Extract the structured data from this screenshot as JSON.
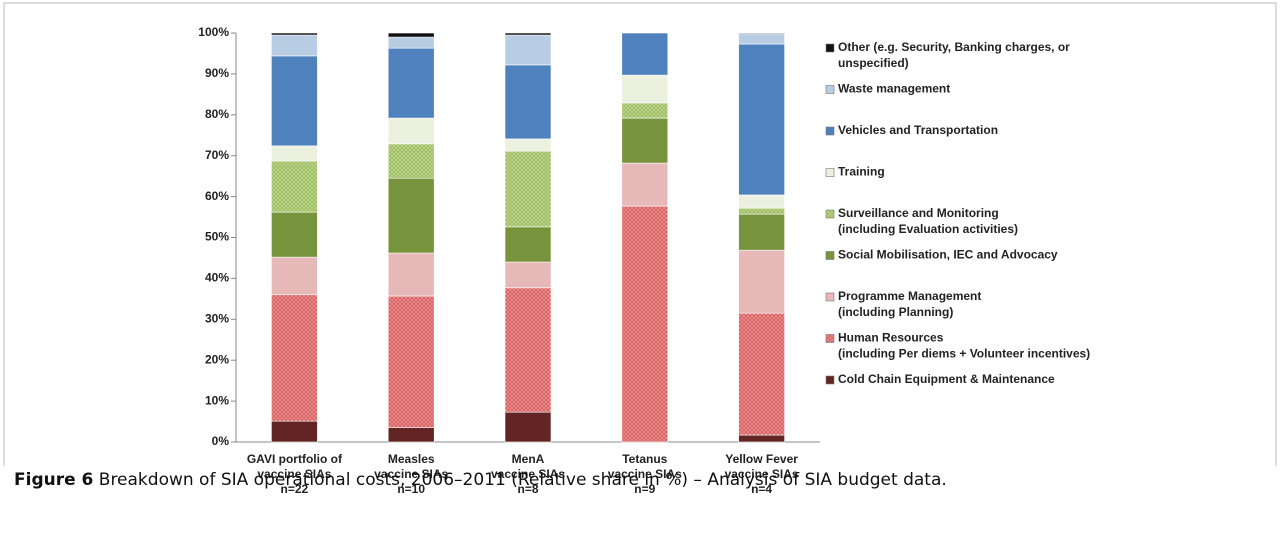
{
  "chart_data": {
    "type": "stacked_bar_100",
    "caption_label": "Figure 6",
    "caption": "Breakdown of SIA operational costs, 2006–2011 (Relative share in %) – Analysis of SIA budget data.",
    "categories": [
      [
        "GAVI portfolio of",
        "vaccine SIAs",
        "n=22"
      ],
      [
        "Measles",
        "vaccine SIAs",
        "n=10"
      ],
      [
        "MenA",
        "vaccine SIAs",
        "n=8"
      ],
      [
        "Tetanus",
        "vaccine SIAs",
        "n=9"
      ],
      [
        "Yellow Fever",
        "vaccine SIAs",
        "n=4"
      ]
    ],
    "series": [
      {
        "name": [
          "Cold Chain Equipment & Maintenance"
        ],
        "color": "#632523",
        "values": [
          5.1,
          3.5,
          7.3,
          0,
          1.7
        ]
      },
      {
        "name": [
          "Human Resources",
          "(including Per diems + Volunteer incentives)"
        ],
        "color": "#d9595a",
        "hatch": true,
        "values": [
          30.9,
          32.2,
          30.4,
          57.7,
          29.8
        ]
      },
      {
        "name": [
          "Programme Management",
          "(including Planning)"
        ],
        "color": "#e6b9b8",
        "values": [
          9.2,
          10.5,
          6.3,
          10.5,
          15.4
        ]
      },
      {
        "name": [
          "Social Mobilisation, IEC and Advocacy"
        ],
        "color": "#77933c",
        "values": [
          11,
          18.3,
          8.6,
          11,
          8.8
        ]
      },
      {
        "name": [
          "Surveillance and Monitoring",
          "(including Evaluation activities)"
        ],
        "color": "#9bbb59",
        "hatch": true,
        "values": [
          12.5,
          8.4,
          18.5,
          3.7,
          1.5
        ]
      },
      {
        "name": [
          "Training"
        ],
        "color": "#ebf1de",
        "values": [
          3.7,
          6.3,
          3,
          6.8,
          3.2
        ]
      },
      {
        "name": [
          "Vehicles and Transportation"
        ],
        "color": "#4f81bd",
        "values": [
          22,
          17.1,
          18.1,
          10.3,
          36.9
        ]
      },
      {
        "name": [
          "Waste management"
        ],
        "color": "#b8cce4",
        "values": [
          5.1,
          2.7,
          7.3,
          0,
          2.5
        ]
      },
      {
        "name": [
          "Other (e.g. Security, Banking charges, or",
          "unspecified)"
        ],
        "color": "#111111",
        "values": [
          0.5,
          1,
          0.5,
          0,
          0.2
        ]
      }
    ],
    "ylim": [
      0,
      100
    ],
    "yticks": [
      {
        "value": 0,
        "label": "0%"
      },
      {
        "value": 10,
        "label": "10%"
      },
      {
        "value": 20,
        "label": "20%"
      },
      {
        "value": 30,
        "label": "30%"
      },
      {
        "value": 40,
        "label": "40%"
      },
      {
        "value": 50,
        "label": "50%"
      },
      {
        "value": 60,
        "label": "60%"
      },
      {
        "value": 70,
        "label": "70%"
      },
      {
        "value": 80,
        "label": "80%"
      },
      {
        "value": 90,
        "label": "90%"
      },
      {
        "value": 100,
        "label": "100%"
      }
    ],
    "grid": false,
    "legend": "right"
  }
}
